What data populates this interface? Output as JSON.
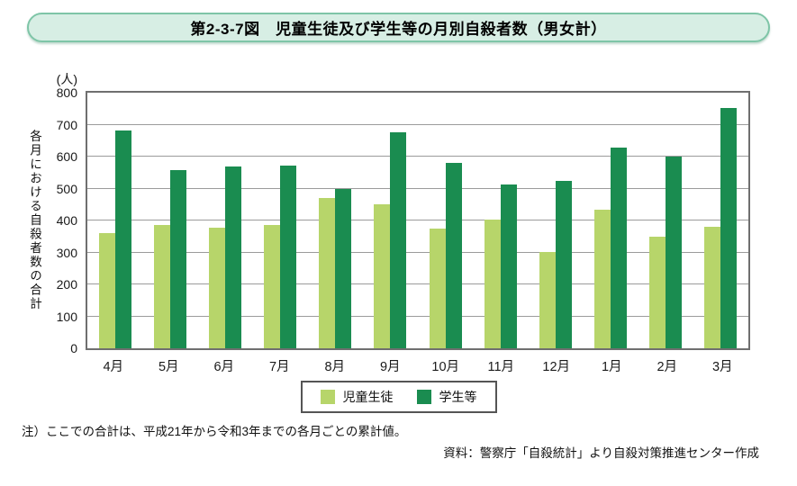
{
  "title": "第2-3-7図　児童生徒及び学生等の月別自殺者数（男女計）",
  "unit_label": "(人)",
  "note": "注）ここでの合計は、平成21年から令和3年までの各月ごとの累計値。",
  "source": "資料：警察庁「自殺統計」より自殺対策推進センター作成",
  "colors": {
    "banner_bg": "#d7eee4",
    "banner_border": "#7ec5a7",
    "light_green": "#b7d56a",
    "dark_green": "#1a8c50",
    "gridline": "#9b9b9b",
    "plot_border": "#6f6f6f"
  },
  "chart_data": {
    "type": "bar",
    "title": "児童生徒及び学生等の月別自殺者数（男女計）",
    "categories": [
      "4月",
      "5月",
      "6月",
      "7月",
      "8月",
      "9月",
      "10月",
      "11月",
      "12月",
      "1月",
      "2月",
      "3月"
    ],
    "series": [
      {
        "name": "児童生徒",
        "color": "#b7d56a",
        "values": [
          362,
          386,
          378,
          385,
          470,
          452,
          374,
          404,
          302,
          435,
          349,
          381
        ]
      },
      {
        "name": "学生等",
        "color": "#1a8c50",
        "values": [
          682,
          557,
          568,
          573,
          498,
          675,
          581,
          513,
          524,
          629,
          600,
          753
        ]
      }
    ],
    "xlabel": "",
    "ylabel": "各月における自殺者数の合計",
    "ylim": [
      0,
      800
    ],
    "ytick_step": 100,
    "grid": true,
    "legend_position": "bottom"
  }
}
